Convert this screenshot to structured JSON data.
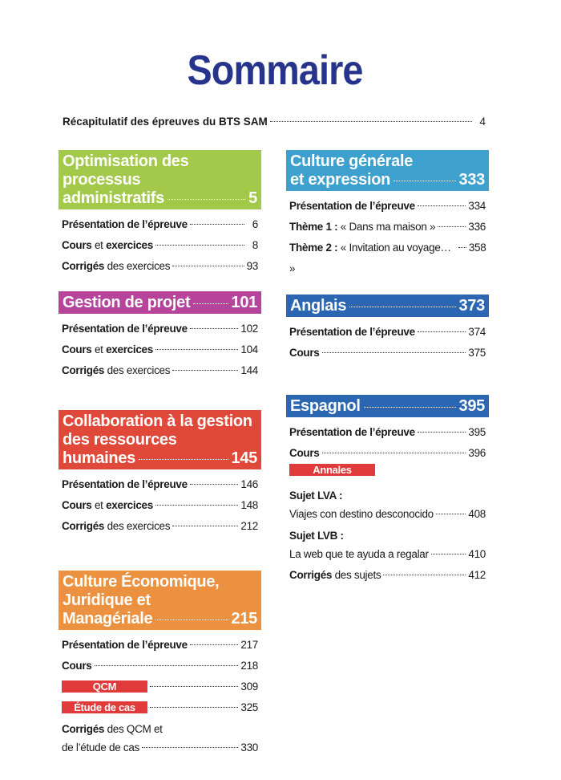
{
  "title": "Sommaire",
  "recap": {
    "label": "Récapitulatif des épreuves du BTS SAM",
    "page": "4"
  },
  "sections": [
    {
      "key": "s1",
      "color": "#a3c94a",
      "title_lines": [
        "Optimisation des processus",
        "administratifs"
      ],
      "page": "5",
      "entries": [
        {
          "type": "entry",
          "parts": [
            {
              "t": "Présentation de l’épreuve",
              "b": true
            }
          ],
          "page": "6"
        },
        {
          "type": "entry",
          "parts": [
            {
              "t": "Cours",
              "b": true
            },
            {
              "t": " et "
            },
            {
              "t": "exercices",
              "b": true
            }
          ],
          "page": "8"
        },
        {
          "type": "entry",
          "parts": [
            {
              "t": "Corrigés",
              "b": true
            },
            {
              "t": " des exercices"
            }
          ],
          "page": "93"
        }
      ]
    },
    {
      "key": "s2",
      "color": "#b5449a",
      "title_lines": [
        "Gestion de projet"
      ],
      "page": "101",
      "entries": [
        {
          "type": "entry",
          "parts": [
            {
              "t": "Présentation de l’épreuve",
              "b": true
            }
          ],
          "page": "102"
        },
        {
          "type": "entry",
          "parts": [
            {
              "t": "Cours",
              "b": true
            },
            {
              "t": " et "
            },
            {
              "t": "exercices",
              "b": true
            }
          ],
          "page": "104"
        },
        {
          "type": "entry",
          "parts": [
            {
              "t": "Corrigés",
              "b": true
            },
            {
              "t": " des exercices"
            }
          ],
          "page": "144"
        }
      ]
    },
    {
      "key": "s3",
      "color": "#e0483a",
      "title_lines": [
        "Collaboration à la gestion",
        "des ressources",
        "humaines"
      ],
      "page": "145",
      "entries": [
        {
          "type": "entry",
          "parts": [
            {
              "t": "Présentation de l’épreuve",
              "b": true
            }
          ],
          "page": "146"
        },
        {
          "type": "entry",
          "parts": [
            {
              "t": "Cours",
              "b": true
            },
            {
              "t": " et "
            },
            {
              "t": "exercices",
              "b": true
            }
          ],
          "page": "148"
        },
        {
          "type": "entry",
          "parts": [
            {
              "t": "Corrigés",
              "b": true
            },
            {
              "t": " des exercices"
            }
          ],
          "page": "212"
        }
      ]
    },
    {
      "key": "s4",
      "color": "#ec9140",
      "title_lines": [
        "Culture Économique,",
        "Juridique et",
        "Managériale"
      ],
      "page": "215",
      "entries": [
        {
          "type": "entry",
          "parts": [
            {
              "t": "Présentation de l’épreuve",
              "b": true
            }
          ],
          "page": "217"
        },
        {
          "type": "entry",
          "parts": [
            {
              "t": "Cours",
              "b": true
            }
          ],
          "page": "218"
        },
        {
          "type": "tag",
          "label": "QCM",
          "page": "309"
        },
        {
          "type": "tag",
          "label": "Étude de cas",
          "page": "325"
        },
        {
          "type": "line",
          "parts": [
            {
              "t": "Corrigés",
              "b": true
            },
            {
              "t": " des QCM et"
            }
          ]
        },
        {
          "type": "entry",
          "parts": [
            {
              "t": "de l’étude de cas"
            }
          ],
          "page": "330"
        }
      ]
    },
    {
      "key": "s5",
      "color": "#3ea0cf",
      "title_lines": [
        "Culture générale",
        "et expression"
      ],
      "page": "333",
      "entries": [
        {
          "type": "entry",
          "parts": [
            {
              "t": "Présentation de l’épreuve",
              "b": true
            }
          ],
          "page": "334"
        },
        {
          "type": "entry",
          "parts": [
            {
              "t": "Thème 1 :",
              "b": true
            },
            {
              "t": " « Dans ma maison »"
            }
          ],
          "page": "336"
        },
        {
          "type": "entry",
          "parts": [
            {
              "t": "Thème 2 :",
              "b": true
            },
            {
              "t": " « Invitation au voyage… »"
            }
          ],
          "page": "358"
        }
      ]
    },
    {
      "key": "s6",
      "color": "#2a66b2",
      "title_lines": [
        "Anglais"
      ],
      "page": "373",
      "entries": [
        {
          "type": "entry",
          "parts": [
            {
              "t": "Présentation de l’épreuve",
              "b": true
            }
          ],
          "page": "374"
        },
        {
          "type": "entry",
          "parts": [
            {
              "t": "Cours",
              "b": true
            }
          ],
          "page": "375"
        }
      ]
    },
    {
      "key": "s7",
      "color": "#2a66b2",
      "title_lines": [
        "Espagnol"
      ],
      "page": "395",
      "entries": [
        {
          "type": "entry",
          "parts": [
            {
              "t": "Présentation de l’épreuve",
              "b": true
            }
          ],
          "page": "395"
        },
        {
          "type": "entry",
          "parts": [
            {
              "t": "Cours",
              "b": true
            }
          ],
          "page": "396"
        },
        {
          "type": "tag",
          "label": "Annales"
        },
        {
          "type": "line",
          "parts": [
            {
              "t": "Sujet LVA :",
              "b": true
            }
          ]
        },
        {
          "type": "entry",
          "parts": [
            {
              "t": "Viajes con destino desconocido"
            }
          ],
          "page": "408"
        },
        {
          "type": "line",
          "parts": [
            {
              "t": "Sujet LVB :",
              "b": true
            }
          ]
        },
        {
          "type": "entry",
          "parts": [
            {
              "t": "La web que te ayuda a regalar"
            }
          ],
          "page": "410"
        },
        {
          "type": "entry",
          "parts": [
            {
              "t": "Corrigés",
              "b": true
            },
            {
              "t": " des sujets"
            }
          ],
          "page": "412"
        }
      ]
    }
  ]
}
